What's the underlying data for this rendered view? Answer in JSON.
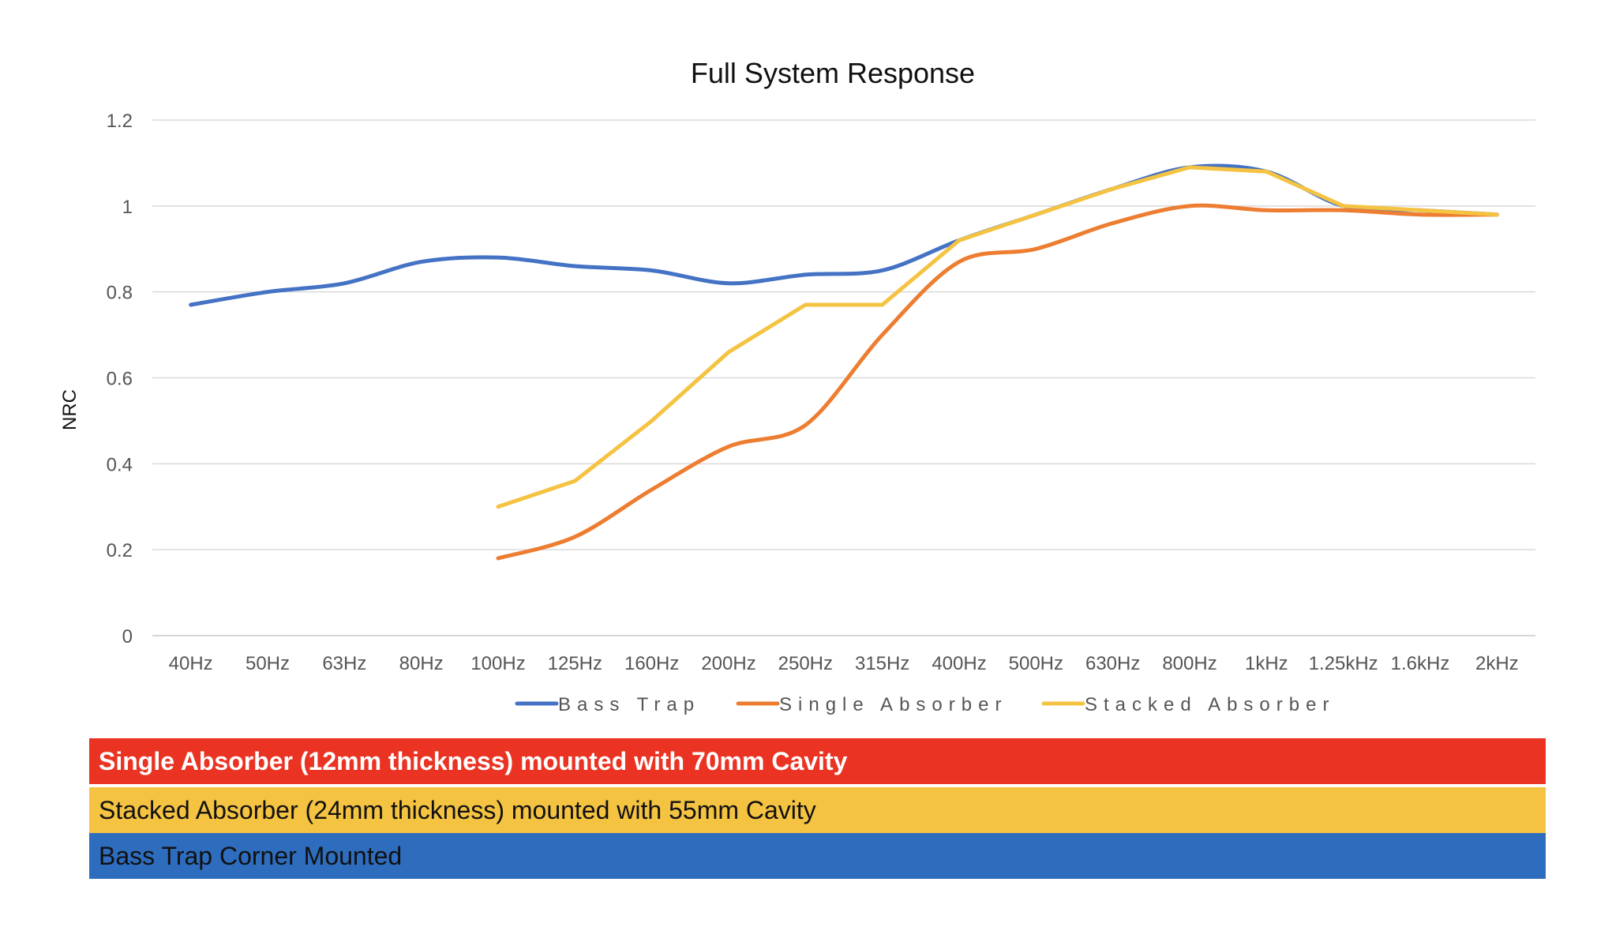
{
  "chart_data": {
    "type": "line",
    "title": "Full System Response",
    "xlabel": "",
    "ylabel": "NRC",
    "ylim": [
      0,
      1.2
    ],
    "yticks": [
      0,
      0.2,
      0.4,
      0.6,
      0.8,
      1,
      1.2
    ],
    "ytick_labels": [
      "0",
      "0.2",
      "0.4",
      "0.6",
      "0.8",
      "1",
      "1.2"
    ],
    "grid": true,
    "legend": "bottom",
    "categories": [
      "40Hz",
      "50Hz",
      "63Hz",
      "80Hz",
      "100Hz",
      "125Hz",
      "160Hz",
      "200Hz",
      "250Hz",
      "315Hz",
      "400Hz",
      "500Hz",
      "630Hz",
      "800Hz",
      "1kHz",
      "1.25kHz",
      "1.6kHz",
      "2kHz"
    ],
    "series": [
      {
        "name": "Bass Trap",
        "color": "#4472C4",
        "smooth": true,
        "values": [
          0.77,
          0.8,
          0.82,
          0.87,
          0.88,
          0.86,
          0.85,
          0.82,
          0.84,
          0.85,
          0.92,
          0.98,
          1.04,
          1.09,
          1.08,
          1.0,
          0.99,
          0.98
        ]
      },
      {
        "name": "Single Absorber",
        "color": "#ED7D31",
        "smooth": true,
        "values": [
          null,
          null,
          null,
          null,
          0.18,
          0.23,
          0.34,
          0.44,
          0.49,
          0.7,
          0.87,
          0.9,
          0.96,
          1.0,
          0.99,
          0.99,
          0.98,
          0.98
        ]
      },
      {
        "name": "Stacked Absorber",
        "color": "#F5C342",
        "smooth": false,
        "values": [
          null,
          null,
          null,
          null,
          0.3,
          0.36,
          0.5,
          0.66,
          0.77,
          0.77,
          0.92,
          0.98,
          1.04,
          1.09,
          1.08,
          1.0,
          0.99,
          0.98
        ]
      }
    ]
  },
  "bands": {
    "single": {
      "text": "Single Absorber (12mm thickness) mounted with 70mm Cavity",
      "color": "#EA3323"
    },
    "stacked": {
      "text": "Stacked Absorber (24mm thickness) mounted with 55mm Cavity",
      "color": "#F5C342"
    },
    "bass": {
      "text": "Bass Trap Corner Mounted",
      "color": "#2E6DBE"
    }
  }
}
